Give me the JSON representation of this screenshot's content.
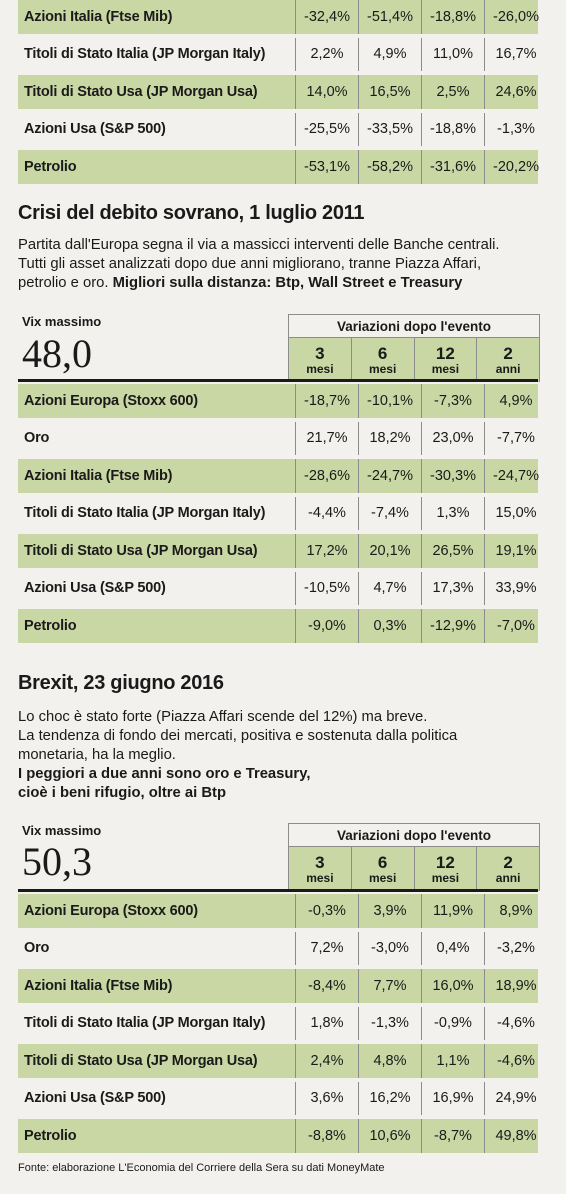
{
  "top_table": {
    "rows": [
      {
        "label": "Azioni Italia (Ftse Mib)",
        "values": [
          "-32,4%",
          "-51,4%",
          "-18,8%",
          "-26,0%"
        ],
        "green": true
      },
      {
        "label": "Titoli di Stato Italia (JP Morgan Italy)",
        "values": [
          "2,2%",
          "4,9%",
          "11,0%",
          "16,7%"
        ],
        "green": false
      },
      {
        "label": "Titoli di Stato Usa (JP Morgan Usa)",
        "values": [
          "14,0%",
          "16,5%",
          "2,5%",
          "24,6%"
        ],
        "green": true
      },
      {
        "label": "Azioni Usa (S&P 500)",
        "values": [
          "-25,5%",
          "-33,5%",
          "-18,8%",
          "-1,3%"
        ],
        "green": false
      },
      {
        "label": "Petrolio",
        "values": [
          "-53,1%",
          "-58,2%",
          "-31,6%",
          "-20,2%"
        ],
        "green": true
      }
    ]
  },
  "section1": {
    "title": "Crisi del debito sovrano, 1 luglio 2011",
    "intro_lines": [
      "Partita dall'Europa segna il via a massicci interventi delle Banche centrali.",
      "Tutti gli asset analizzati dopo due anni migliorano, tranne Piazza Affari,"
    ],
    "intro_last_plain": "petrolio e oro. ",
    "intro_bold": "Migliori sulla distanza: Btp, Wall Street e Treasury",
    "vix_label": "Vix massimo",
    "vix_value": "48,0",
    "var_title": "Variazioni dopo l'evento",
    "cols": [
      {
        "n": "3",
        "u": "mesi"
      },
      {
        "n": "6",
        "u": "mesi"
      },
      {
        "n": "12",
        "u": "mesi"
      },
      {
        "n": "2",
        "u": "anni"
      }
    ],
    "rows": [
      {
        "label": "Azioni Europa (Stoxx 600)",
        "values": [
          "-18,7%",
          "-10,1%",
          "-7,3%",
          "4,9%"
        ],
        "green": true
      },
      {
        "label": "Oro",
        "values": [
          "21,7%",
          "18,2%",
          "23,0%",
          "-7,7%"
        ],
        "green": false
      },
      {
        "label": "Azioni Italia (Ftse Mib)",
        "values": [
          "-28,6%",
          "-24,7%",
          "-30,3%",
          "-24,7%"
        ],
        "green": true
      },
      {
        "label": "Titoli di Stato Italia (JP Morgan Italy)",
        "values": [
          "-4,4%",
          "-7,4%",
          "1,3%",
          "15,0%"
        ],
        "green": false
      },
      {
        "label": "Titoli di Stato Usa (JP Morgan Usa)",
        "values": [
          "17,2%",
          "20,1%",
          "26,5%",
          "19,1%"
        ],
        "green": true
      },
      {
        "label": "Azioni Usa (S&P 500)",
        "values": [
          "-10,5%",
          "4,7%",
          "17,3%",
          "33,9%"
        ],
        "green": false
      },
      {
        "label": "Petrolio",
        "values": [
          "-9,0%",
          "0,3%",
          "-12,9%",
          "-7,0%"
        ],
        "green": true
      }
    ]
  },
  "section2": {
    "title": "Brexit, 23 giugno 2016",
    "intro_lines": [
      "Lo choc è stato forte (Piazza Affari scende del 12%) ma breve.",
      "La tendenza di fondo dei mercati, positiva e sostenuta dalla politica",
      "monetaria, ha la meglio."
    ],
    "intro_bold_lines": [
      "I peggiori a due anni sono oro e Treasury,",
      "cioè i beni rifugio, oltre ai Btp"
    ],
    "vix_label": "Vix massimo",
    "vix_value": "50,3",
    "var_title": "Variazioni dopo l'evento",
    "cols": [
      {
        "n": "3",
        "u": "mesi"
      },
      {
        "n": "6",
        "u": "mesi"
      },
      {
        "n": "12",
        "u": "mesi"
      },
      {
        "n": "2",
        "u": "anni"
      }
    ],
    "rows": [
      {
        "label": "Azioni Europa (Stoxx 600)",
        "values": [
          "-0,3%",
          "3,9%",
          "11,9%",
          "8,9%"
        ],
        "green": true
      },
      {
        "label": "Oro",
        "values": [
          "7,2%",
          "-3,0%",
          "0,4%",
          "-3,2%"
        ],
        "green": false
      },
      {
        "label": "Azioni Italia (Ftse Mib)",
        "values": [
          "-8,4%",
          "7,7%",
          "16,0%",
          "18,9%"
        ],
        "green": true
      },
      {
        "label": "Titoli di Stato Italia (JP Morgan Italy)",
        "values": [
          "1,8%",
          "-1,3%",
          "-0,9%",
          "-4,6%"
        ],
        "green": false
      },
      {
        "label": "Titoli di Stato Usa (JP Morgan Usa)",
        "values": [
          "2,4%",
          "4,8%",
          "1,1%",
          "-4,6%"
        ],
        "green": true
      },
      {
        "label": "Azioni Usa (S&P 500)",
        "values": [
          "3,6%",
          "16,2%",
          "16,9%",
          "24,9%"
        ],
        "green": false
      },
      {
        "label": "Petrolio",
        "values": [
          "-8,8%",
          "10,6%",
          "-8,7%",
          "49,8%"
        ],
        "green": true
      }
    ]
  },
  "source": "Fonte: elaborazione L'Economia del Corriere della Sera su dati MoneyMate"
}
